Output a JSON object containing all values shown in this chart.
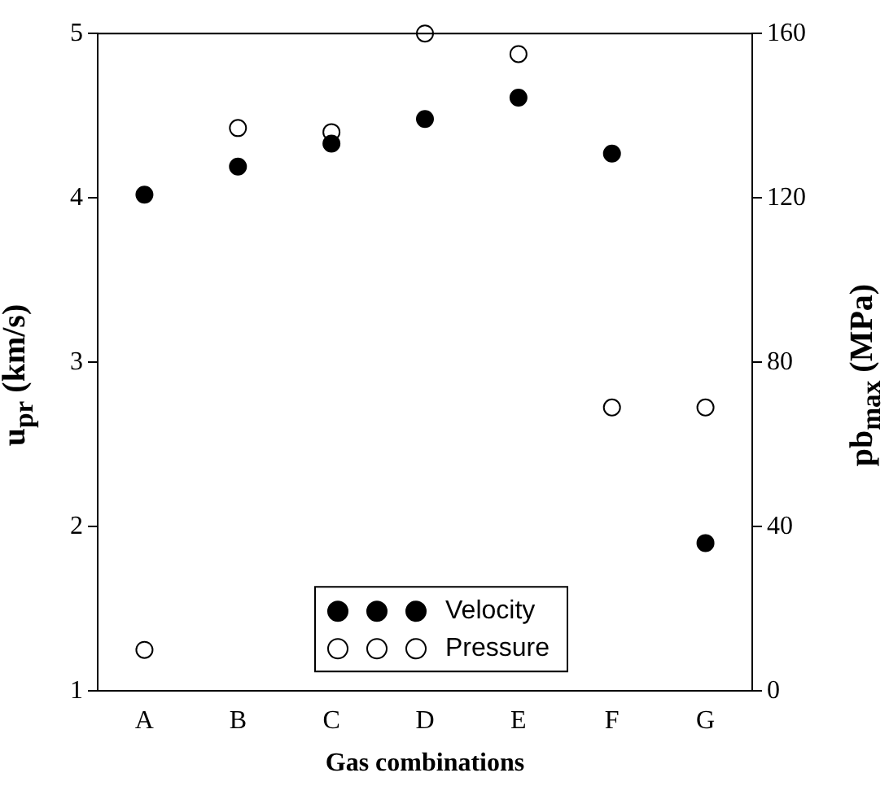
{
  "chart_data": {
    "type": "scatter",
    "xlabel": "Gas combinations",
    "ylabel": "u$_{pr}$ (km/s)",
    "y2label": "pb$_{max}$ (MPa)",
    "categories": [
      "A",
      "B",
      "C",
      "D",
      "E",
      "F",
      "G"
    ],
    "series": [
      {
        "name": "Velocity",
        "color": "#000000",
        "values": [
          4.02,
          4.19,
          4.33,
          4.48,
          4.61,
          4.27,
          1.9
        ]
      },
      {
        "name": "Pressure",
        "color": "#000000",
        "axis": "y2",
        "values": [
          10,
          137,
          136,
          160,
          155,
          69,
          69
        ]
      }
    ],
    "ylim": [
      1,
      5
    ],
    "yticks": [
      1,
      2,
      3,
      4,
      5
    ],
    "y2lim": [
      0,
      160
    ],
    "y2ticks": [
      0,
      40,
      80,
      120,
      160
    ],
    "grid": false,
    "legend": "bottom",
    "marker": "circle"
  }
}
